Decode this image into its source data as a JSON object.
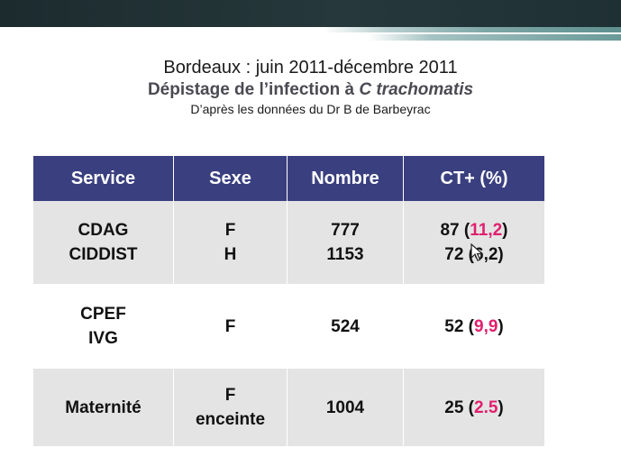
{
  "slide": {
    "title": "Bordeaux : juin 2011-décembre 2011",
    "subtitle_text": "Dépistage de l’infection à ",
    "subtitle_italic": "C trachomatis",
    "source": "D’après les données du Dr B de Barbeyrac"
  },
  "colors": {
    "header_bg": "#3a3f80",
    "row_gray": "#e4e4e4",
    "highlight": "#e0206e",
    "top_band": "#1c2b2e"
  },
  "table": {
    "headers": [
      "Service",
      "Sexe",
      "Nombre",
      "CT+ (%)"
    ],
    "rows": [
      {
        "service": [
          "CDAG",
          "CIDDIST"
        ],
        "sexe": [
          "F",
          "H"
        ],
        "nombre": [
          "777",
          "1153"
        ],
        "ct": [
          {
            "count": "87",
            "open": " (",
            "pct": "11,2",
            "close": ")"
          },
          {
            "count": "72",
            "open": " (",
            "pct": "6,2",
            "close": ")"
          }
        ]
      },
      {
        "service": [
          "CPEF",
          "IVG"
        ],
        "sexe": [
          "F"
        ],
        "nombre": [
          "524"
        ],
        "ct": [
          {
            "count": "52",
            "open": " (",
            "pct": "9,9",
            "close": ")"
          }
        ]
      },
      {
        "service": [
          "Maternité"
        ],
        "sexe": [
          "F",
          "enceinte"
        ],
        "nombre": [
          "1004"
        ],
        "ct": [
          {
            "count": "25",
            "open": " (",
            "pct": "2.5",
            "close": ")"
          }
        ]
      }
    ]
  },
  "cursor": {
    "icon": "mouse-pointer-icon"
  }
}
